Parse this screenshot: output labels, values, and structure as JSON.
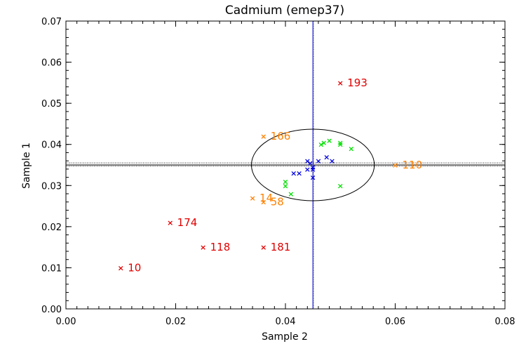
{
  "chart_data": {
    "type": "scatter",
    "title": "Cadmium (emep37)",
    "xlabel": "Sample 2",
    "ylabel": "Sample 1",
    "xlim": [
      0.0,
      0.08
    ],
    "ylim": [
      0.0,
      0.07
    ],
    "xticks": [
      "0.00",
      "0.02",
      "0.04",
      "0.06",
      "0.08"
    ],
    "yticks": [
      "0.00",
      "0.01",
      "0.02",
      "0.03",
      "0.04",
      "0.05",
      "0.06",
      "0.07"
    ],
    "reference_lines": {
      "vertical_x": 0.045,
      "horizontal_y": 0.035,
      "horizontal_band": [
        0.0347,
        0.0355
      ]
    },
    "ellipse": {
      "center": [
        0.045,
        0.035
      ],
      "semi_axis_x": 0.0112,
      "semi_axis_y": 0.0087
    },
    "series": [
      {
        "name": "red-outliers",
        "color": "#e00000",
        "points": [
          {
            "x": 0.01,
            "y": 0.01,
            "label": "10"
          },
          {
            "x": 0.019,
            "y": 0.021,
            "label": "174"
          },
          {
            "x": 0.025,
            "y": 0.015,
            "label": "118"
          },
          {
            "x": 0.036,
            "y": 0.015,
            "label": "181"
          },
          {
            "x": 0.05,
            "y": 0.055,
            "label": "193"
          }
        ]
      },
      {
        "name": "orange-points",
        "color": "#ff8000",
        "points": [
          {
            "x": 0.036,
            "y": 0.042,
            "label": "166"
          },
          {
            "x": 0.06,
            "y": 0.035,
            "label": "110"
          },
          {
            "x": 0.034,
            "y": 0.027,
            "label": "14"
          },
          {
            "x": 0.036,
            "y": 0.026,
            "label": "58"
          }
        ]
      },
      {
        "name": "green-points",
        "color": "#00e000",
        "points": [
          {
            "x": 0.04,
            "y": 0.031
          },
          {
            "x": 0.04,
            "y": 0.03
          },
          {
            "x": 0.041,
            "y": 0.028
          },
          {
            "x": 0.0465,
            "y": 0.04
          },
          {
            "x": 0.047,
            "y": 0.0405
          },
          {
            "x": 0.048,
            "y": 0.041
          },
          {
            "x": 0.05,
            "y": 0.0405
          },
          {
            "x": 0.05,
            "y": 0.04
          },
          {
            "x": 0.052,
            "y": 0.039
          },
          {
            "x": 0.05,
            "y": 0.03
          }
        ]
      },
      {
        "name": "blue-points",
        "color": "#0000e0",
        "points": [
          {
            "x": 0.0415,
            "y": 0.033
          },
          {
            "x": 0.0425,
            "y": 0.033
          },
          {
            "x": 0.044,
            "y": 0.036
          },
          {
            "x": 0.0445,
            "y": 0.0355
          },
          {
            "x": 0.044,
            "y": 0.034
          },
          {
            "x": 0.045,
            "y": 0.0345
          },
          {
            "x": 0.045,
            "y": 0.034
          },
          {
            "x": 0.045,
            "y": 0.032
          },
          {
            "x": 0.046,
            "y": 0.036
          },
          {
            "x": 0.0475,
            "y": 0.037
          },
          {
            "x": 0.0485,
            "y": 0.036
          }
        ]
      }
    ]
  }
}
